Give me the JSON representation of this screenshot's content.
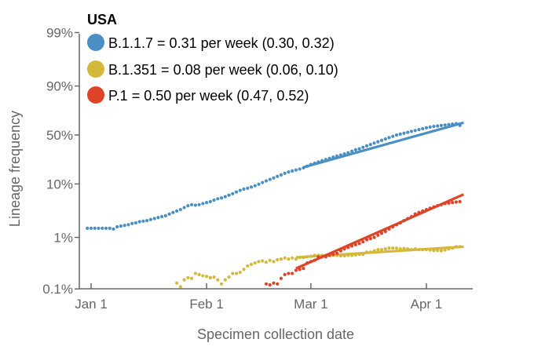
{
  "chart_data": {
    "type": "scatter",
    "title": "USA",
    "xlabel": "Specimen collection date",
    "ylabel": "Lineage frequency",
    "yscale": "logit",
    "ylim_pct": [
      0.1,
      99
    ],
    "xlim_days_from_jan1": [
      -3,
      103
    ],
    "x_ticks": [
      {
        "label": "Jan 1",
        "day": 0
      },
      {
        "label": "Feb 1",
        "day": 31
      },
      {
        "label": "Mar 1",
        "day": 59
      },
      {
        "label": "Apr 1",
        "day": 90
      }
    ],
    "y_ticks": [
      {
        "label": "0.1%",
        "pct": 0.1
      },
      {
        "label": "1%",
        "pct": 1
      },
      {
        "label": "10%",
        "pct": 10
      },
      {
        "label": "50%",
        "pct": 50
      },
      {
        "label": "90%",
        "pct": 90
      },
      {
        "label": "99%",
        "pct": 99
      }
    ],
    "grid": false,
    "legend_position": "top-left",
    "series": [
      {
        "name": "B.1.1.7",
        "legend_label": "B.1.1.7 = 0.31 per week (0.30, 0.32)",
        "growth_rate_per_week": 0.31,
        "ci": [
          0.3,
          0.32
        ],
        "color": "#4A8FC4",
        "points": [
          [
            -1,
            1.5
          ],
          [
            0,
            1.5
          ],
          [
            1,
            1.5
          ],
          [
            2,
            1.5
          ],
          [
            3,
            1.5
          ],
          [
            4,
            1.5
          ],
          [
            5,
            1.5
          ],
          [
            6,
            1.45
          ],
          [
            7,
            1.6
          ],
          [
            8,
            1.65
          ],
          [
            9,
            1.7
          ],
          [
            10,
            1.75
          ],
          [
            11,
            1.85
          ],
          [
            12,
            1.9
          ],
          [
            13,
            2.0
          ],
          [
            14,
            2.05
          ],
          [
            15,
            2.1
          ],
          [
            16,
            2.2
          ],
          [
            17,
            2.3
          ],
          [
            18,
            2.4
          ],
          [
            19,
            2.5
          ],
          [
            20,
            2.6
          ],
          [
            21,
            2.8
          ],
          [
            22,
            3.0
          ],
          [
            23,
            3.2
          ],
          [
            24,
            3.4
          ],
          [
            25,
            3.7
          ],
          [
            26,
            4.0
          ],
          [
            27,
            4.2
          ],
          [
            28,
            4.1
          ],
          [
            29,
            4.2
          ],
          [
            30,
            4.4
          ],
          [
            31,
            4.6
          ],
          [
            32,
            4.8
          ],
          [
            33,
            5.1
          ],
          [
            34,
            5.4
          ],
          [
            35,
            5.6
          ],
          [
            36,
            5.9
          ],
          [
            37,
            6.3
          ],
          [
            38,
            6.7
          ],
          [
            39,
            7.2
          ],
          [
            40,
            7.7
          ],
          [
            41,
            8.1
          ],
          [
            42,
            8.4
          ],
          [
            43,
            8.8
          ],
          [
            44,
            9.3
          ],
          [
            45,
            9.9
          ],
          [
            46,
            10.6
          ],
          [
            47,
            11.3
          ],
          [
            48,
            12.0
          ],
          [
            49,
            12.7
          ],
          [
            50,
            13.5
          ],
          [
            51,
            14.3
          ],
          [
            52,
            15.2
          ],
          [
            53,
            16.0
          ],
          [
            54,
            16.6
          ],
          [
            55,
            17.2
          ],
          [
            56,
            17.8
          ],
          [
            57,
            18.6
          ],
          [
            58,
            19.8
          ],
          [
            59,
            21.0
          ],
          [
            60,
            22.0
          ],
          [
            61,
            23.0
          ],
          [
            62,
            24.0
          ],
          [
            63,
            25.0
          ],
          [
            64,
            26.0
          ],
          [
            65,
            27.0
          ],
          [
            66,
            28.0
          ],
          [
            67,
            29.0
          ],
          [
            68,
            30.0
          ],
          [
            69,
            31.0
          ],
          [
            70,
            32.5
          ],
          [
            71,
            34.0
          ],
          [
            72,
            35.0
          ],
          [
            73,
            36.5
          ],
          [
            74,
            38.0
          ],
          [
            75,
            39.5
          ],
          [
            76,
            41.0
          ],
          [
            77,
            42.5
          ],
          [
            78,
            44.0
          ],
          [
            79,
            45.5
          ],
          [
            80,
            47.0
          ],
          [
            81,
            48.5
          ],
          [
            82,
            50.0
          ],
          [
            83,
            51.0
          ],
          [
            84,
            52.0
          ],
          [
            85,
            53.0
          ],
          [
            86,
            54.0
          ],
          [
            87,
            55.0
          ],
          [
            88,
            56.0
          ],
          [
            89,
            57.0
          ],
          [
            90,
            58.0
          ],
          [
            91,
            58.8
          ],
          [
            92,
            59.5
          ],
          [
            93,
            60.0
          ],
          [
            94,
            60.5
          ],
          [
            95,
            61.0
          ],
          [
            96,
            61.5
          ],
          [
            97,
            62.0
          ],
          [
            98,
            62.5
          ],
          [
            99,
            60.5
          ]
        ],
        "fit": {
          "start": [
            57,
            19.0
          ],
          "end": [
            100,
            63.5
          ]
        }
      },
      {
        "name": "B.1.351",
        "legend_label": "B.1.351 = 0.08 per week (0.06, 0.10)",
        "growth_rate_per_week": 0.08,
        "ci": [
          0.06,
          0.1
        ],
        "color": "#D4B83C",
        "points": [
          [
            23,
            0.13
          ],
          [
            24,
            0.11
          ],
          [
            25,
            0.15
          ],
          [
            26,
            0.165
          ],
          [
            27,
            0.16
          ],
          [
            28,
            0.2
          ],
          [
            29,
            0.19
          ],
          [
            30,
            0.18
          ],
          [
            31,
            0.175
          ],
          [
            32,
            0.165
          ],
          [
            33,
            0.17
          ],
          [
            34,
            0.15
          ],
          [
            35,
            0.125
          ],
          [
            36,
            0.15
          ],
          [
            37,
            0.17
          ],
          [
            38,
            0.2
          ],
          [
            39,
            0.2
          ],
          [
            40,
            0.21
          ],
          [
            41,
            0.24
          ],
          [
            42,
            0.28
          ],
          [
            43,
            0.3
          ],
          [
            44,
            0.32
          ],
          [
            45,
            0.34
          ],
          [
            46,
            0.35
          ],
          [
            47,
            0.33
          ],
          [
            48,
            0.36
          ],
          [
            49,
            0.34
          ],
          [
            50,
            0.37
          ],
          [
            51,
            0.38
          ],
          [
            52,
            0.4
          ],
          [
            53,
            0.38
          ],
          [
            54,
            0.4
          ],
          [
            55,
            0.38
          ],
          [
            56,
            0.41
          ],
          [
            57,
            0.41
          ],
          [
            58,
            0.42
          ],
          [
            59,
            0.43
          ],
          [
            60,
            0.45
          ],
          [
            61,
            0.45
          ],
          [
            62,
            0.45
          ],
          [
            63,
            0.45
          ],
          [
            64,
            0.45
          ],
          [
            65,
            0.45
          ],
          [
            66,
            0.45
          ],
          [
            67,
            0.44
          ],
          [
            68,
            0.44
          ],
          [
            69,
            0.45
          ],
          [
            70,
            0.45
          ],
          [
            71,
            0.46
          ],
          [
            72,
            0.47
          ],
          [
            73,
            0.47
          ],
          [
            74,
            0.52
          ],
          [
            75,
            0.52
          ],
          [
            76,
            0.55
          ],
          [
            77,
            0.58
          ],
          [
            78,
            0.58
          ],
          [
            79,
            0.6
          ],
          [
            80,
            0.62
          ],
          [
            81,
            0.62
          ],
          [
            82,
            0.62
          ],
          [
            83,
            0.6
          ],
          [
            84,
            0.61
          ],
          [
            85,
            0.6
          ],
          [
            86,
            0.58
          ],
          [
            87,
            0.6
          ],
          [
            88,
            0.58
          ],
          [
            89,
            0.58
          ],
          [
            90,
            0.58
          ],
          [
            91,
            0.57
          ],
          [
            92,
            0.56
          ],
          [
            93,
            0.56
          ],
          [
            94,
            0.55
          ],
          [
            95,
            0.57
          ],
          [
            96,
            0.6
          ],
          [
            97,
            0.62
          ],
          [
            98,
            0.66
          ],
          [
            99,
            0.66
          ]
        ],
        "fit": {
          "start": [
            55,
            0.41
          ],
          "end": [
            100,
            0.66
          ]
        }
      },
      {
        "name": "P.1",
        "legend_label": "P.1 = 0.50 per week (0.47, 0.52)",
        "growth_rate_per_week": 0.5,
        "ci": [
          0.47,
          0.52
        ],
        "color": "#DE4328",
        "points": [
          [
            47,
            0.125
          ],
          [
            48,
            0.12
          ],
          [
            49,
            0.13
          ],
          [
            50,
            0.125
          ],
          [
            51,
            0.16
          ],
          [
            52,
            0.19
          ],
          [
            53,
            0.2
          ],
          [
            54,
            0.2
          ],
          [
            55,
            0.23
          ],
          [
            56,
            0.24
          ],
          [
            57,
            0.25
          ],
          [
            58,
            0.32
          ],
          [
            59,
            0.34
          ],
          [
            60,
            0.36
          ],
          [
            61,
            0.42
          ],
          [
            62,
            0.42
          ],
          [
            63,
            0.42
          ],
          [
            64,
            0.45
          ],
          [
            65,
            0.47
          ],
          [
            66,
            0.49
          ],
          [
            67,
            0.55
          ],
          [
            68,
            0.6
          ],
          [
            69,
            0.64
          ],
          [
            70,
            0.68
          ],
          [
            71,
            0.72
          ],
          [
            72,
            0.76
          ],
          [
            73,
            0.82
          ],
          [
            74,
            0.9
          ],
          [
            75,
            0.95
          ],
          [
            76,
            1.0
          ],
          [
            77,
            1.1
          ],
          [
            78,
            1.2
          ],
          [
            79,
            1.3
          ],
          [
            80,
            1.45
          ],
          [
            81,
            1.6
          ],
          [
            82,
            1.75
          ],
          [
            83,
            1.9
          ],
          [
            84,
            2.1
          ],
          [
            85,
            2.3
          ],
          [
            86,
            2.5
          ],
          [
            87,
            2.8
          ],
          [
            88,
            3.0
          ],
          [
            89,
            3.2
          ],
          [
            90,
            3.4
          ],
          [
            91,
            3.6
          ],
          [
            92,
            3.8
          ],
          [
            93,
            4.0
          ],
          [
            94,
            4.2
          ],
          [
            95,
            4.4
          ],
          [
            96,
            4.5
          ],
          [
            97,
            4.6
          ],
          [
            98,
            4.7
          ],
          [
            99,
            4.8
          ]
        ],
        "fit": {
          "start": [
            55,
            0.25
          ],
          "end": [
            100,
            6.5
          ]
        }
      }
    ]
  }
}
